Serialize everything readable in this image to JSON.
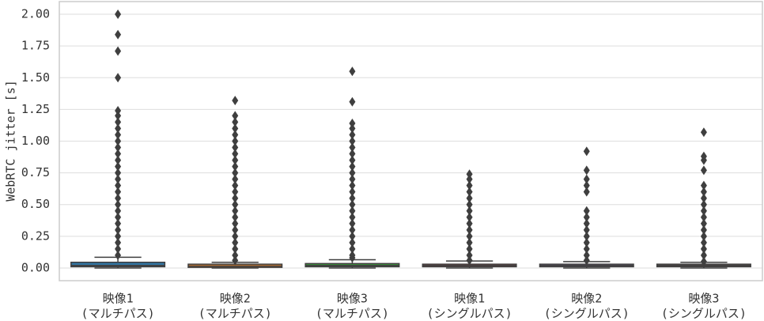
{
  "chart_data": {
    "type": "box",
    "ylabel": "WebRTC jitter [s]",
    "categories": [
      [
        "映像1",
        "(マルチパス)"
      ],
      [
        "映像2",
        "(マルチパス)"
      ],
      [
        "映像3",
        "(マルチパス)"
      ],
      [
        "映像1",
        "(シングルパス)"
      ],
      [
        "映像2",
        "(シングルパス)"
      ],
      [
        "映像3",
        "(シングルパス)"
      ]
    ],
    "ylim": [
      -0.1,
      2.1
    ],
    "yticks": [
      {
        "value": 0,
        "label": "0.00"
      },
      {
        "value": 0.25,
        "label": "0.25"
      },
      {
        "value": 0.5,
        "label": "0.50"
      },
      {
        "value": 0.75,
        "label": "0.75"
      },
      {
        "value": 1,
        "label": "1.00"
      },
      {
        "value": 1.25,
        "label": "1.25"
      },
      {
        "value": 1.5,
        "label": "1.50"
      },
      {
        "value": 1.75,
        "label": "1.75"
      },
      {
        "value": 2,
        "label": "2.00"
      }
    ],
    "grid": true,
    "edge_color": "#3f3f3f",
    "boxes": [
      {
        "color": "#3274a1",
        "whislo": 0,
        "q1": 0.01,
        "median": 0.02,
        "q3": 0.045,
        "whishi": 0.085,
        "fliers": [
          0.1,
          0.15,
          0.2,
          0.25,
          0.3,
          0.35,
          0.4,
          0.45,
          0.5,
          0.55,
          0.6,
          0.65,
          0.7,
          0.75,
          0.8,
          0.85,
          0.9,
          0.95,
          1.0,
          1.05,
          1.1,
          1.15,
          1.2,
          1.24,
          1.5,
          1.71,
          1.84,
          2.0
        ]
      },
      {
        "color": "#e1812c",
        "whislo": 0,
        "q1": 0.005,
        "median": 0.015,
        "q3": 0.03,
        "whishi": 0.045,
        "fliers": [
          0.06,
          0.1,
          0.15,
          0.2,
          0.25,
          0.3,
          0.35,
          0.4,
          0.45,
          0.5,
          0.55,
          0.6,
          0.65,
          0.7,
          0.75,
          0.8,
          0.85,
          0.9,
          0.95,
          1.0,
          1.05,
          1.1,
          1.15,
          1.2,
          1.32
        ]
      },
      {
        "color": "#3a923a",
        "whislo": 0,
        "q1": 0.01,
        "median": 0.02,
        "q3": 0.035,
        "whishi": 0.065,
        "fliers": [
          0.08,
          0.1,
          0.15,
          0.2,
          0.25,
          0.3,
          0.35,
          0.4,
          0.45,
          0.5,
          0.55,
          0.6,
          0.65,
          0.7,
          0.75,
          0.8,
          0.85,
          0.9,
          0.95,
          1.0,
          1.05,
          1.1,
          1.14,
          1.31,
          1.55
        ]
      },
      {
        "color": "#c03d3e",
        "whislo": 0,
        "q1": 0.01,
        "median": 0.02,
        "q3": 0.03,
        "whishi": 0.055,
        "fliers": [
          0.06,
          0.1,
          0.15,
          0.2,
          0.25,
          0.3,
          0.35,
          0.4,
          0.45,
          0.5,
          0.55,
          0.6,
          0.65,
          0.7,
          0.74
        ]
      },
      {
        "color": "#9372b2",
        "whislo": 0,
        "q1": 0.01,
        "median": 0.02,
        "q3": 0.03,
        "whishi": 0.05,
        "fliers": [
          0.06,
          0.1,
          0.15,
          0.2,
          0.25,
          0.3,
          0.35,
          0.4,
          0.45,
          0.6,
          0.65,
          0.7,
          0.77,
          0.92
        ]
      },
      {
        "color": "#845b53",
        "whislo": 0,
        "q1": 0.01,
        "median": 0.02,
        "q3": 0.03,
        "whishi": 0.045,
        "fliers": [
          0.05,
          0.1,
          0.15,
          0.2,
          0.25,
          0.3,
          0.35,
          0.4,
          0.45,
          0.5,
          0.55,
          0.6,
          0.65,
          0.77,
          0.85,
          0.88,
          1.07
        ]
      }
    ]
  }
}
